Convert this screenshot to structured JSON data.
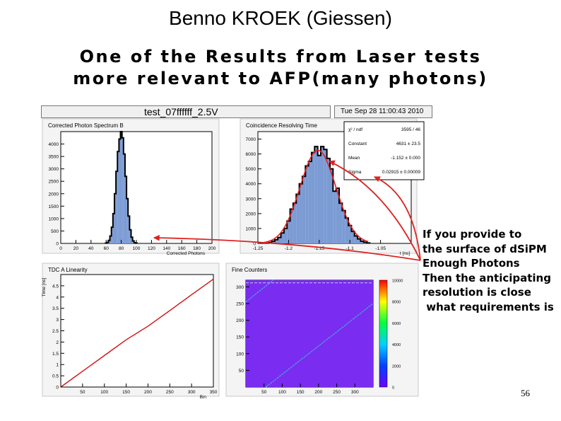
{
  "slide": {
    "title": "Benno KROEK (Giessen)",
    "subtitle_line1": "One of the Results from Laser tests",
    "subtitle_line2": "more relevant to AFP(many photons)",
    "page_number": "56"
  },
  "canvas": {
    "title": "test_07ffffff_2.5V",
    "date": "Tue Sep 28 11:00:43 2010"
  },
  "note_lines": [
    "If you provide to",
    "the surface of dSiPM",
    "Enough Photons",
    "Then the anticipating",
    "resolution is close",
    " what requirements is"
  ],
  "colors": {
    "hist_fill": "#7b9bd4",
    "hist_line": "#000000",
    "fit_line": "#e02020",
    "arrow": "#e02020",
    "linearity_line": "#d01010",
    "fiber_bg": "#7a2cf0",
    "fiber_trace": "#4aa8e0"
  },
  "chart_data": [
    {
      "type": "bar",
      "title": "Corrected Photon Spectrum B",
      "xlabel": "Corrected Photons",
      "xlim": [
        0,
        200
      ],
      "ylim": [
        0,
        4500
      ],
      "x_ticks": [
        0,
        20,
        40,
        60,
        80,
        100,
        120,
        140,
        160,
        180,
        200
      ],
      "y_ticks": [
        0,
        500,
        1000,
        1500,
        2000,
        2500,
        3000,
        3500,
        4000
      ],
      "bin_centers": [
        60,
        62,
        64,
        66,
        68,
        70,
        72,
        74,
        76,
        78,
        80,
        82,
        84,
        86,
        88,
        90,
        92,
        94,
        96,
        98,
        100
      ],
      "values": [
        10,
        40,
        120,
        300,
        650,
        1200,
        2000,
        2900,
        3700,
        4200,
        4500,
        4250,
        3600,
        2700,
        1800,
        1100,
        550,
        250,
        100,
        30,
        10
      ]
    },
    {
      "type": "bar",
      "title": "Coincidence Resolving Time",
      "xlabel": "t [ns]",
      "xlim": [
        -1.25,
        -1.0
      ],
      "ylim": [
        0,
        7500
      ],
      "x_ticks": [
        -1.25,
        -1.2,
        -1.15,
        -1.1,
        -1.05
      ],
      "x_tick_labels": [
        "-1.25",
        "-1.2",
        "-1.15",
        "-1.1",
        "-1.05"
      ],
      "y_ticks": [
        0,
        1000,
        2000,
        3000,
        4000,
        5000,
        6000,
        7000
      ],
      "bin_centers": [
        -1.235,
        -1.23,
        -1.225,
        -1.22,
        -1.215,
        -1.21,
        -1.205,
        -1.2,
        -1.195,
        -1.19,
        -1.185,
        -1.18,
        -1.175,
        -1.17,
        -1.165,
        -1.16,
        -1.155,
        -1.15,
        -1.145,
        -1.14,
        -1.135,
        -1.13,
        -1.125,
        -1.12,
        -1.115,
        -1.11,
        -1.105,
        -1.1,
        -1.095,
        -1.09,
        -1.085,
        -1.08,
        -1.075,
        -1.07
      ],
      "values": [
        20,
        60,
        150,
        250,
        400,
        700,
        1000,
        1500,
        2300,
        2700,
        3300,
        4000,
        4500,
        5200,
        5500,
        6100,
        6500,
        5900,
        6500,
        6300,
        5700,
        5000,
        3500,
        3700,
        2700,
        2200,
        1700,
        1200,
        800,
        500,
        300,
        150,
        80,
        30
      ],
      "stats": [
        {
          "label": "χ² / ndf",
          "value": "3595 / 46"
        },
        {
          "label": "Constant",
          "value": "4631 ± 23.5"
        },
        {
          "label": "Mean",
          "value": "-1.152 ± 0.000"
        },
        {
          "label": "Sigma",
          "value": "0.02915 ± 0.00009"
        }
      ]
    },
    {
      "type": "line",
      "title": "TDC A Linearity",
      "ylabel": "Time [ns]",
      "xlabel": "Bin",
      "xlim": [
        0,
        350
      ],
      "ylim": [
        0,
        5
      ],
      "x_ticks": [
        50,
        100,
        150,
        200,
        250,
        300,
        350
      ],
      "y_ticks": [
        0,
        0.5,
        1,
        1.5,
        2,
        2.5,
        3,
        3.5,
        4,
        4.5
      ],
      "x": [
        0,
        50,
        100,
        150,
        200,
        250,
        300,
        350
      ],
      "y": [
        0,
        0.7,
        1.4,
        2.1,
        2.7,
        3.4,
        4.1,
        4.8
      ]
    },
    {
      "type": "heatmap",
      "title": "Fine Counters",
      "xlim": [
        0,
        350
      ],
      "ylim": [
        0,
        320
      ],
      "x_ticks": [
        50,
        100,
        150,
        200,
        250,
        300
      ],
      "y_ticks": [
        50,
        100,
        150,
        200,
        250,
        300
      ],
      "z_ticks": [
        0,
        2000,
        4000,
        6000,
        8000,
        10000
      ]
    }
  ]
}
